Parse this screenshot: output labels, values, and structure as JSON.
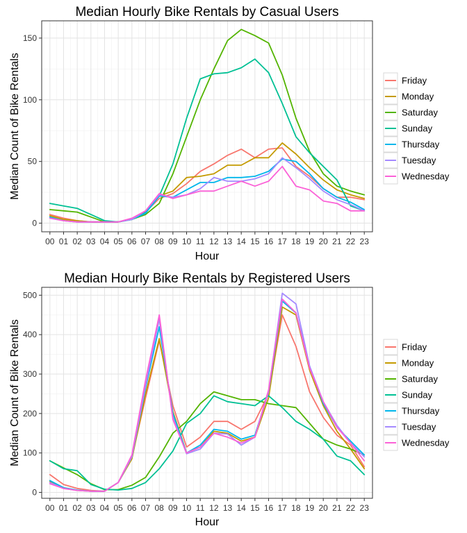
{
  "chart_data": [
    {
      "type": "line",
      "title": "Median Hourly Bike Rentals by Casual Users",
      "xlabel": "Hour",
      "ylabel": "Median Count of Bike Rentals",
      "ylim": [
        -7,
        164
      ],
      "yticks": [
        0,
        50,
        100,
        150
      ],
      "grid": true,
      "legend_position": "right",
      "categories": [
        "00",
        "01",
        "02",
        "03",
        "04",
        "05",
        "06",
        "07",
        "08",
        "09",
        "10",
        "11",
        "12",
        "13",
        "14",
        "15",
        "16",
        "17",
        "18",
        "19",
        "20",
        "21",
        "22",
        "23"
      ],
      "series": [
        {
          "name": "Friday",
          "color": "#F8766D",
          "values": [
            7,
            4,
            2,
            1,
            1,
            1,
            3,
            9,
            20,
            24,
            32,
            42,
            48,
            55,
            60,
            53,
            60,
            61,
            46,
            38,
            28,
            21,
            21,
            19
          ]
        },
        {
          "name": "Monday",
          "color": "#C49A00",
          "values": [
            6,
            3,
            2,
            1,
            1,
            1,
            3,
            9,
            22,
            26,
            37,
            38,
            40,
            47,
            47,
            53,
            53,
            65,
            56,
            45,
            35,
            27,
            23,
            20
          ]
        },
        {
          "name": "Saturday",
          "color": "#53B400",
          "values": [
            11,
            10,
            9,
            5,
            1,
            1,
            3,
            7,
            16,
            40,
            70,
            100,
            125,
            148,
            157,
            152,
            146,
            120,
            85,
            58,
            40,
            30,
            26,
            23
          ]
        },
        {
          "name": "Sunday",
          "color": "#00C094",
          "values": [
            16,
            14,
            12,
            7,
            2,
            1,
            3,
            9,
            22,
            48,
            85,
            117,
            121,
            122,
            126,
            133,
            122,
            97,
            70,
            57,
            46,
            35,
            14,
            10
          ]
        },
        {
          "name": "Thursday",
          "color": "#00B6EB",
          "values": [
            5,
            2,
            1,
            1,
            1,
            1,
            3,
            8,
            22,
            21,
            27,
            33,
            33,
            37,
            37,
            38,
            42,
            52,
            50,
            40,
            28,
            21,
            17,
            11
          ]
        },
        {
          "name": "Tuesday",
          "color": "#A58AFF",
          "values": [
            4,
            2,
            1,
            1,
            1,
            1,
            3,
            10,
            23,
            21,
            23,
            28,
            37,
            34,
            34,
            36,
            40,
            53,
            45,
            36,
            26,
            19,
            15,
            10
          ]
        },
        {
          "name": "Wednesday",
          "color": "#FB61D7",
          "values": [
            4,
            2,
            1,
            1,
            1,
            1,
            4,
            10,
            24,
            20,
            23,
            26,
            26,
            30,
            34,
            30,
            34,
            46,
            30,
            27,
            18,
            16,
            10,
            10
          ]
        }
      ]
    },
    {
      "type": "line",
      "title": "Median Hourly Bike Rentals by Registered Users",
      "xlabel": "Hour",
      "ylabel": "Median Count of Bike Rentals",
      "ylim": [
        -15,
        520
      ],
      "yticks": [
        0,
        100,
        200,
        300,
        400,
        500
      ],
      "grid": true,
      "legend_position": "right",
      "categories": [
        "00",
        "01",
        "02",
        "03",
        "04",
        "05",
        "06",
        "07",
        "08",
        "09",
        "10",
        "11",
        "12",
        "13",
        "14",
        "15",
        "16",
        "17",
        "18",
        "19",
        "20",
        "21",
        "22",
        "23"
      ],
      "series": [
        {
          "name": "Friday",
          "color": "#F8766D",
          "values": [
            45,
            20,
            10,
            5,
            3,
            25,
            90,
            240,
            385,
            220,
            115,
            140,
            180,
            180,
            160,
            180,
            250,
            450,
            370,
            255,
            190,
            145,
            120,
            65
          ]
        },
        {
          "name": "Monday",
          "color": "#C49A00",
          "values": [
            28,
            12,
            5,
            3,
            3,
            25,
            85,
            250,
            390,
            205,
            100,
            115,
            155,
            150,
            130,
            140,
            240,
            470,
            450,
            310,
            220,
            155,
            110,
            60
          ]
        },
        {
          "name": "Saturday",
          "color": "#53B400",
          "values": [
            80,
            62,
            45,
            22,
            7,
            7,
            18,
            38,
            90,
            150,
            180,
            225,
            255,
            245,
            235,
            235,
            225,
            220,
            215,
            175,
            135,
            120,
            110,
            95
          ]
        },
        {
          "name": "Sunday",
          "color": "#00C094",
          "values": [
            80,
            60,
            55,
            20,
            8,
            6,
            10,
            25,
            60,
            105,
            175,
            200,
            245,
            230,
            225,
            220,
            245,
            215,
            180,
            160,
            135,
            92,
            80,
            45
          ]
        },
        {
          "name": "Thursday",
          "color": "#00B6EB",
          "values": [
            30,
            12,
            6,
            3,
            3,
            25,
            90,
            265,
            420,
            200,
            100,
            120,
            160,
            155,
            135,
            145,
            255,
            485,
            455,
            320,
            225,
            165,
            130,
            95
          ]
        },
        {
          "name": "Tuesday",
          "color": "#A58AFF",
          "values": [
            25,
            10,
            5,
            3,
            3,
            25,
            90,
            270,
            440,
            190,
            98,
            110,
            150,
            148,
            120,
            140,
            255,
            505,
            478,
            320,
            230,
            170,
            125,
            90
          ]
        },
        {
          "name": "Wednesday",
          "color": "#FB61D7",
          "values": [
            22,
            10,
            5,
            3,
            3,
            25,
            95,
            285,
            450,
            185,
            100,
            115,
            150,
            140,
            125,
            140,
            260,
            490,
            455,
            315,
            230,
            165,
            125,
            80
          ]
        }
      ]
    }
  ]
}
